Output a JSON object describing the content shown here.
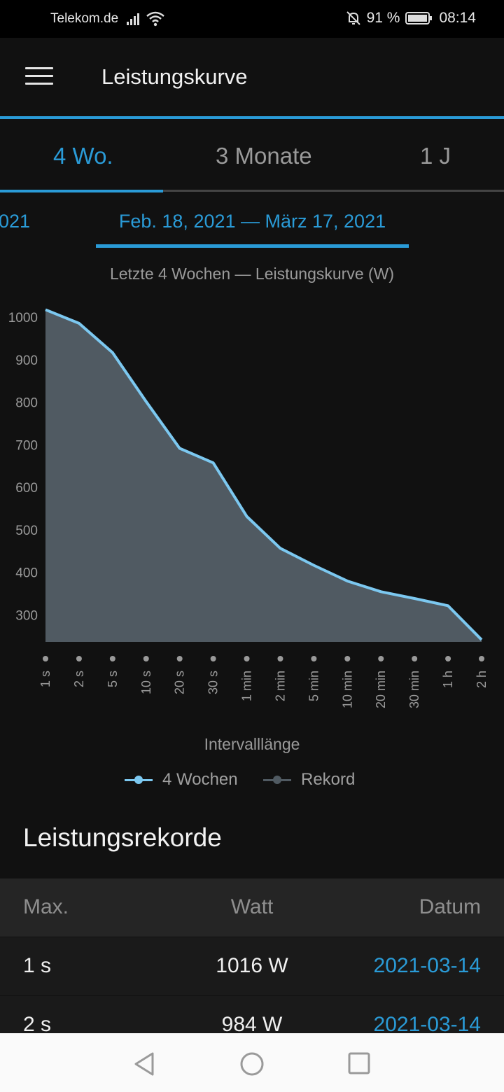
{
  "status": {
    "carrier": "Telekom.de",
    "battery": "91 %",
    "time": "08:14",
    "icons": [
      "signal-icon",
      "wifi-icon",
      "mute-icon",
      "battery-icon"
    ]
  },
  "appbar": {
    "title": "Leistungskurve",
    "menu_icon": "hamburger-menu-icon"
  },
  "tabs": [
    {
      "label": "4 Wo.",
      "active": true
    },
    {
      "label": "3 Monate",
      "active": false
    },
    {
      "label": "1 J",
      "active": false
    }
  ],
  "date": {
    "previous_partial": "021",
    "current": "Feb. 18, 2021 — März 17, 2021"
  },
  "chart_data": {
    "type": "area",
    "title": "Letzte 4 Wochen — Leistungskurve (W)",
    "xlabel": "Intervalllänge",
    "ylabel": "",
    "categories": [
      "1 s",
      "2 s",
      "5 s",
      "10 s",
      "20 s",
      "30 s",
      "1 min",
      "2 min",
      "5 min",
      "10 min",
      "20 min",
      "30 min",
      "1 h",
      "2 h"
    ],
    "y_ticks": [
      1000,
      900,
      800,
      700,
      600,
      500,
      400,
      300
    ],
    "ylim": [
      235,
      1020
    ],
    "series": [
      {
        "name": "4 Wochen",
        "values": [
          1016,
          984,
          915,
          800,
          690,
          656,
          530,
          455,
          415,
          378,
          353,
          337,
          320,
          240
        ],
        "color": "#7cc8f0"
      },
      {
        "name": "Rekord",
        "values": [
          1016,
          984,
          915,
          800,
          690,
          656,
          530,
          455,
          415,
          378,
          353,
          337,
          320,
          240
        ],
        "color": "#505a62"
      }
    ],
    "grid": false,
    "legend": "bottom-center"
  },
  "records": {
    "title": "Leistungsrekorde",
    "headers": [
      "Max.",
      "Watt",
      "Datum"
    ],
    "rows": [
      {
        "interval": "1 s",
        "watt": "1016 W",
        "date": "2021-03-14"
      },
      {
        "interval": "2 s",
        "watt": "984 W",
        "date": "2021-03-14"
      }
    ]
  },
  "colors": {
    "accent": "#2a9bd7",
    "background": "#111111",
    "area": "#505a62",
    "line": "#7cc8f0"
  },
  "navbar": {
    "icons": [
      "back-icon",
      "home-icon",
      "recents-icon"
    ]
  }
}
